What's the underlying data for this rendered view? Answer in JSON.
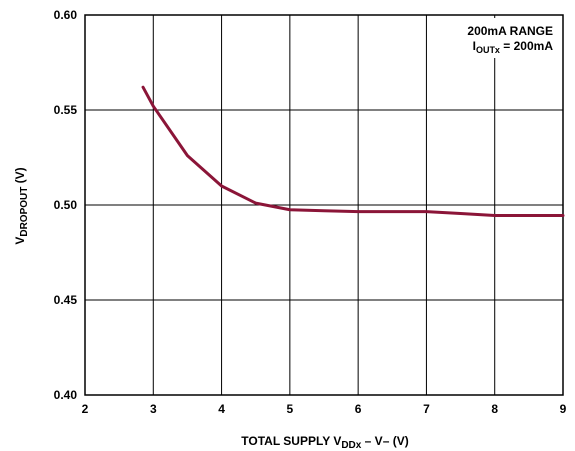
{
  "chart_data": {
    "type": "line",
    "xlabel": {
      "prefix": "TOTAL SUPPLY V",
      "sub": "DDx",
      "suffix": " – V– (V)"
    },
    "ylabel": {
      "prefix": "V",
      "sub": "DROPOUT",
      "suffix": " (V)"
    },
    "xlim": [
      2,
      9
    ],
    "ylim": [
      0.4,
      0.6
    ],
    "x_ticks": [
      "2",
      "3",
      "4",
      "5",
      "6",
      "7",
      "8",
      "9"
    ],
    "y_ticks": [
      "0.40",
      "0.45",
      "0.50",
      "0.55",
      "0.60"
    ],
    "grid": true,
    "annotation": {
      "line1": "200mA RANGE",
      "line2_prefix": "I",
      "line2_sub": "OUTx",
      "line2_suffix": " = 200mA"
    },
    "series": [
      {
        "color": "#8b1538",
        "x": [
          2.85,
          3.0,
          3.5,
          4.0,
          4.5,
          5.0,
          5.5,
          6.0,
          6.5,
          7.0,
          7.5,
          8.0,
          8.5,
          9.0
        ],
        "y": [
          0.562,
          0.552,
          0.526,
          0.51,
          0.501,
          0.4975,
          0.497,
          0.4965,
          0.4965,
          0.4965,
          0.4955,
          0.4945,
          0.4945,
          0.4945
        ]
      }
    ]
  }
}
